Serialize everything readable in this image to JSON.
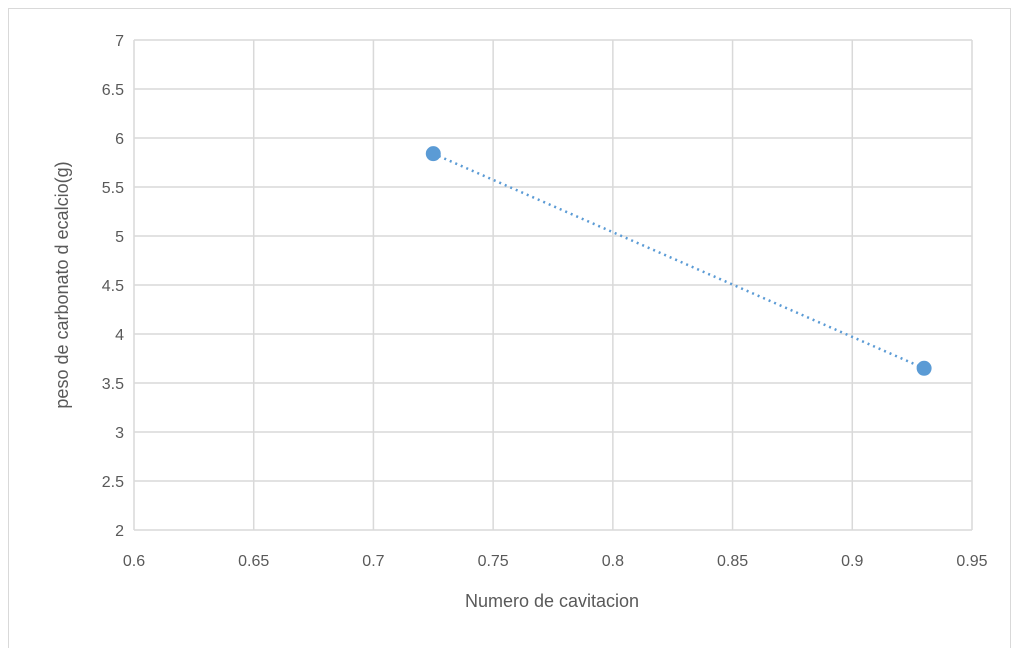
{
  "chart_data": {
    "type": "scatter",
    "title": "",
    "xlabel": "Numero de cavitacion",
    "ylabel": "peso de carbonato d ecalcio(g)",
    "xlim": [
      0.6,
      0.95
    ],
    "ylim": [
      2,
      7
    ],
    "x_ticks": [
      "0.6",
      "0.65",
      "0.7",
      "0.75",
      "0.8",
      "0.85",
      "0.9",
      "0.95"
    ],
    "y_ticks": [
      "2",
      "2.5",
      "3",
      "3.5",
      "4",
      "4.5",
      "5",
      "5.5",
      "6",
      "6.5",
      "7"
    ],
    "x_tick_values": [
      0.6,
      0.65,
      0.7,
      0.75,
      0.8,
      0.85,
      0.9,
      0.95
    ],
    "y_tick_values": [
      2,
      2.5,
      3,
      3.5,
      4,
      4.5,
      5,
      5.5,
      6,
      6.5,
      7
    ],
    "grid": true,
    "trendline": "linear",
    "series": [
      {
        "points": [
          {
            "x": 0.725,
            "y": 5.84
          },
          {
            "x": 0.93,
            "y": 3.65
          }
        ]
      }
    ],
    "colors": {
      "marker": "#5b9bd5",
      "grid": "#d9d9d9",
      "text": "#595959"
    }
  }
}
